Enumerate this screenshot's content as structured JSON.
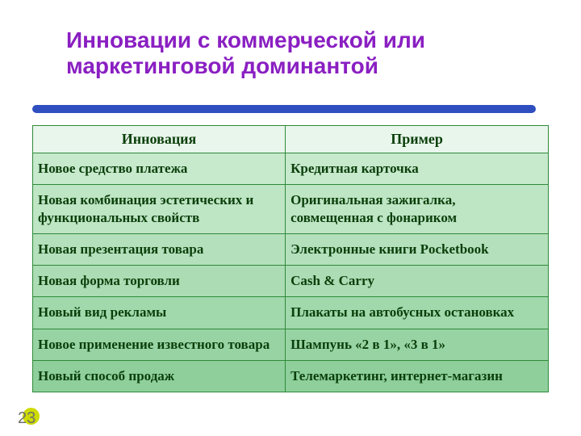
{
  "colors": {
    "title": "#8a1fc2",
    "accent": "#cddb00",
    "underline": "#2f4fc0",
    "page_no": "#6f6f6f",
    "header_bg": "#e9f6ec",
    "header_text": "#0a3f0a",
    "header_border": "#2f8a3a",
    "body_bg_top": "#c7e9cc",
    "body_bg_bottom": "#8ecf9c",
    "body_text": "#0a3f0a",
    "body_border": "#2f8a3a"
  },
  "title": "Инновации с коммерческой или маркетинговой доминантой",
  "page_number": "23",
  "table": {
    "columns": [
      "Инновация",
      "Пример"
    ],
    "rows": [
      [
        "Новое средство платежа",
        "Кредитная карточка"
      ],
      [
        "Новая комбинация эстетических и функциональных свойств",
        "Оригинальная зажигалка, совмещенная с фонариком"
      ],
      [
        "Новая презентация товара",
        "Электронные книги Pocketbook"
      ],
      [
        "Новая форма торговли",
        "Cash & Carry"
      ],
      [
        "Новый вид рекламы",
        "Плакаты на автобусных остановках"
      ],
      [
        "Новое применение известного товара",
        "Шампунь «2 в 1», «3 в 1»"
      ],
      [
        "Новый способ продаж",
        "Телемаркетинг, интернет-магазин"
      ]
    ]
  }
}
